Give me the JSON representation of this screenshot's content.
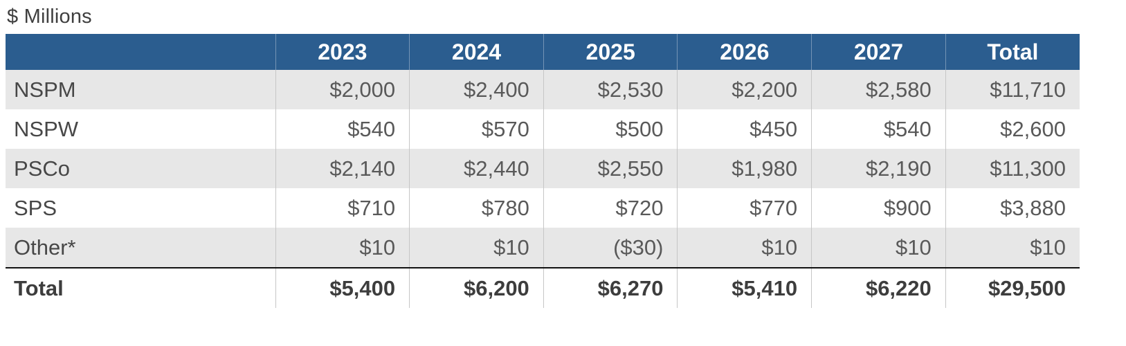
{
  "title": "$ Millions",
  "colors": {
    "header_bg": "#2B5D8F",
    "header_text": "#FFFFFF",
    "alt_row_bg": "#E7E7E7",
    "body_text": "#595959"
  },
  "table": {
    "header": [
      "",
      "2023",
      "2024",
      "2025",
      "2026",
      "2027",
      "Total"
    ],
    "rows": [
      {
        "label": "NSPM",
        "values": [
          "$2,000",
          "$2,400",
          "$2,530",
          "$2,200",
          "$2,580",
          "$11,710"
        ]
      },
      {
        "label": "NSPW",
        "values": [
          "$540",
          "$570",
          "$500",
          "$450",
          "$540",
          "$2,600"
        ]
      },
      {
        "label": "PSCo",
        "values": [
          "$2,140",
          "$2,440",
          "$2,550",
          "$1,980",
          "$2,190",
          "$11,300"
        ]
      },
      {
        "label": "SPS",
        "values": [
          "$710",
          "$780",
          "$720",
          "$770",
          "$900",
          "$3,880"
        ]
      },
      {
        "label": "Other*",
        "values": [
          "$10",
          "$10",
          "($30)",
          "$10",
          "$10",
          "$10"
        ]
      }
    ],
    "total": {
      "label": "Total",
      "values": [
        "$5,400",
        "$6,200",
        "$6,270",
        "$5,410",
        "$6,220",
        "$29,500"
      ]
    }
  },
  "chart_data": {
    "type": "table",
    "title": "$ Millions",
    "units": "USD millions",
    "columns": [
      "2023",
      "2024",
      "2025",
      "2026",
      "2027",
      "Total"
    ],
    "rows": [
      {
        "label": "NSPM",
        "values": [
          2000,
          2400,
          2530,
          2200,
          2580,
          11710
        ]
      },
      {
        "label": "NSPW",
        "values": [
          540,
          570,
          500,
          450,
          540,
          2600
        ]
      },
      {
        "label": "PSCo",
        "values": [
          2140,
          2440,
          2550,
          1980,
          2190,
          11300
        ]
      },
      {
        "label": "SPS",
        "values": [
          710,
          780,
          720,
          770,
          900,
          3880
        ]
      },
      {
        "label": "Other*",
        "values": [
          10,
          10,
          -30,
          10,
          10,
          10
        ]
      },
      {
        "label": "Total",
        "values": [
          5400,
          6200,
          6270,
          5410,
          6220,
          29500
        ]
      }
    ]
  }
}
